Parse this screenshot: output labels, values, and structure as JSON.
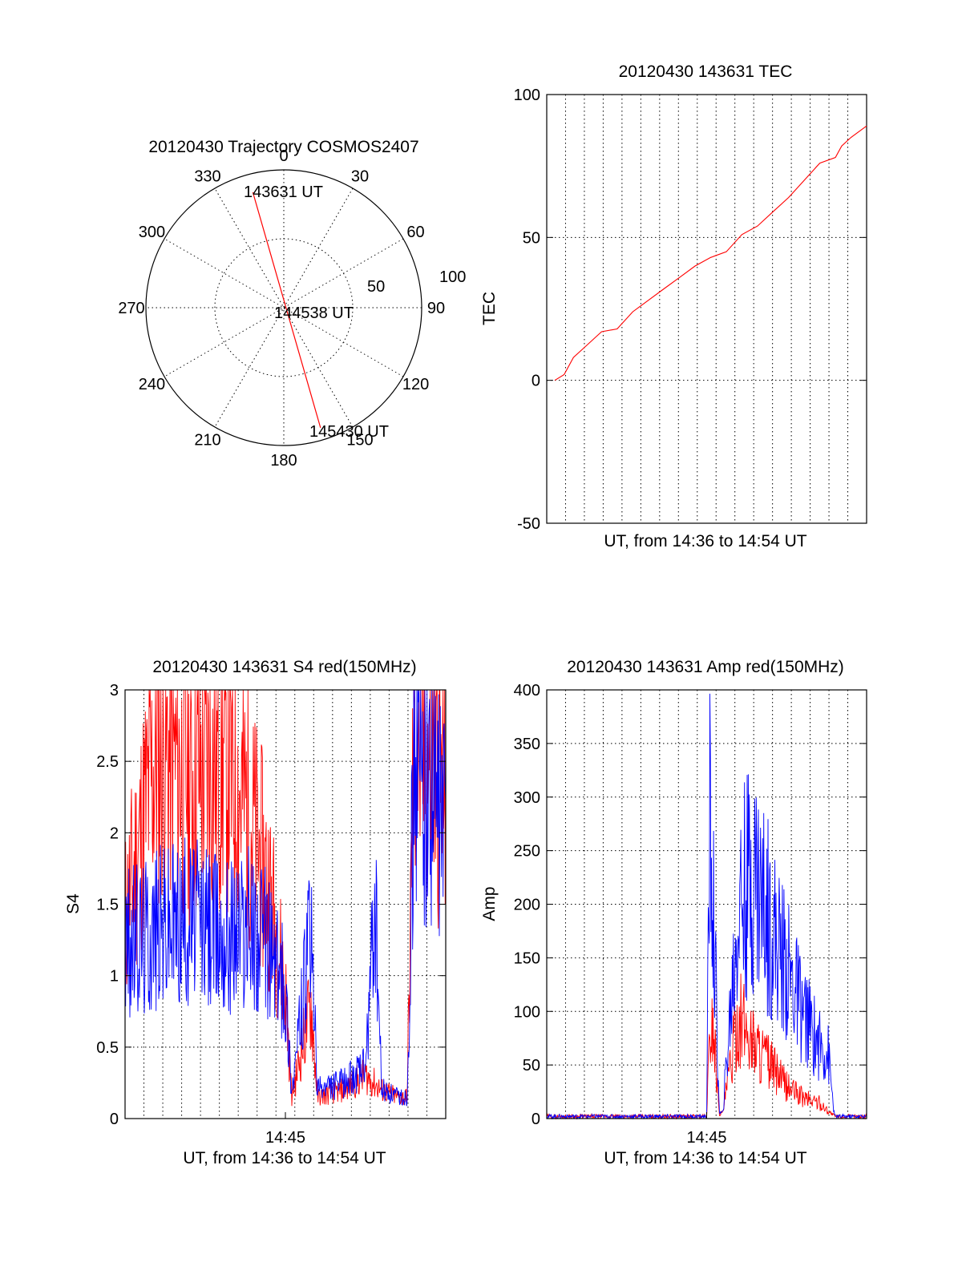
{
  "chart_data": [
    {
      "type": "scatter",
      "panel": "polar",
      "title": "20120430 Trajectory COSMOS2407",
      "azimuth_labels": [
        "0",
        "30",
        "60",
        "90",
        "120",
        "150",
        "180",
        "210",
        "240",
        "270",
        "300",
        "330"
      ],
      "ring_labels": [
        "50",
        "100"
      ],
      "trajectory": {
        "color": "#ff0000",
        "points": [
          {
            "az": 345,
            "el": 12,
            "label": "143631 UT"
          },
          {
            "az": 225,
            "el": 85,
            "label": "144538 UT"
          },
          {
            "az": 163,
            "el": 8,
            "label": "145430 UT"
          }
        ]
      }
    },
    {
      "type": "line",
      "panel": "tec",
      "title": "20120430 143631 TEC",
      "xlabel": "UT, from 14:36 to 14:54 UT",
      "ylabel": "TEC",
      "ylim": [
        -50,
        100
      ],
      "yticks": [
        "-50",
        "0",
        "50",
        "100"
      ],
      "xlim": [
        0,
        1
      ],
      "series": [
        {
          "color": "#ff0000",
          "x": [
            0.0,
            0.03,
            0.06,
            0.1,
            0.15,
            0.2,
            0.25,
            0.3,
            0.35,
            0.4,
            0.45,
            0.5,
            0.55,
            0.6,
            0.65,
            0.7,
            0.75,
            0.8,
            0.85,
            0.9,
            0.92,
            0.95,
            1.0
          ],
          "y": [
            0,
            2,
            8,
            12,
            17,
            18,
            24,
            28,
            32,
            36,
            40,
            43,
            45,
            51,
            54,
            59,
            64,
            70,
            76,
            78,
            82,
            85,
            89
          ]
        }
      ]
    },
    {
      "type": "line",
      "panel": "s4",
      "title": "20120430 143631 S4 red(150MHz)",
      "xlabel": "UT, from 14:36 to 14:54 UT",
      "ylabel": "S4",
      "ylim": [
        0,
        3
      ],
      "yticks": [
        "0",
        "0.5",
        "1",
        "1.5",
        "2",
        "2.5",
        "3"
      ],
      "xticks": [
        {
          "x": 0.5,
          "label": "14:45"
        }
      ],
      "series": [
        {
          "color": "#ff0000",
          "x": [
            0.0,
            0.1,
            0.2,
            0.3,
            0.38,
            0.45,
            0.5,
            0.52,
            0.58,
            0.6,
            0.68,
            0.75,
            0.8,
            0.85,
            0.88,
            0.9,
            0.95,
            1.0
          ],
          "y": [
            1.4,
            2.6,
            2.4,
            2.5,
            2.2,
            1.6,
            0.9,
            0.15,
            0.8,
            0.15,
            0.2,
            0.3,
            0.2,
            0.15,
            0.15,
            2.6,
            2.5,
            2.3
          ]
        },
        {
          "color": "#0000ff",
          "x": [
            0.0,
            0.1,
            0.2,
            0.3,
            0.38,
            0.45,
            0.5,
            0.52,
            0.58,
            0.6,
            0.68,
            0.75,
            0.78,
            0.8,
            0.85,
            0.88,
            0.9,
            0.95,
            1.0
          ],
          "y": [
            1.2,
            1.35,
            1.4,
            1.3,
            1.35,
            1.2,
            0.9,
            0.2,
            1.3,
            0.2,
            0.25,
            0.35,
            1.5,
            0.2,
            0.15,
            0.15,
            2.5,
            2.3,
            2.0
          ]
        }
      ]
    },
    {
      "type": "line",
      "panel": "amp",
      "title": "20120430 143631 Amp red(150MHz)",
      "xlabel": "UT, from 14:36 to 14:54 UT",
      "ylabel": "Amp",
      "ylim": [
        0,
        400
      ],
      "yticks": [
        "0",
        "50",
        "100",
        "150",
        "200",
        "250",
        "300",
        "350",
        "400"
      ],
      "xticks": [
        {
          "x": 0.5,
          "label": "14:45"
        }
      ],
      "series": [
        {
          "color": "#ff0000",
          "x": [
            0.0,
            0.5,
            0.51,
            0.52,
            0.54,
            0.55,
            0.6,
            0.65,
            0.7,
            0.75,
            0.8,
            0.85,
            0.9,
            1.0
          ],
          "y": [
            2,
            2,
            80,
            90,
            5,
            5,
            95,
            70,
            50,
            30,
            20,
            15,
            2,
            2
          ]
        },
        {
          "color": "#0000ff",
          "x": [
            0.0,
            0.5,
            0.51,
            0.52,
            0.54,
            0.55,
            0.6,
            0.65,
            0.7,
            0.75,
            0.8,
            0.85,
            0.88,
            0.9,
            1.0
          ],
          "y": [
            2,
            2,
            280,
            200,
            5,
            5,
            200,
            230,
            180,
            140,
            100,
            70,
            60,
            2,
            2
          ]
        }
      ]
    }
  ]
}
